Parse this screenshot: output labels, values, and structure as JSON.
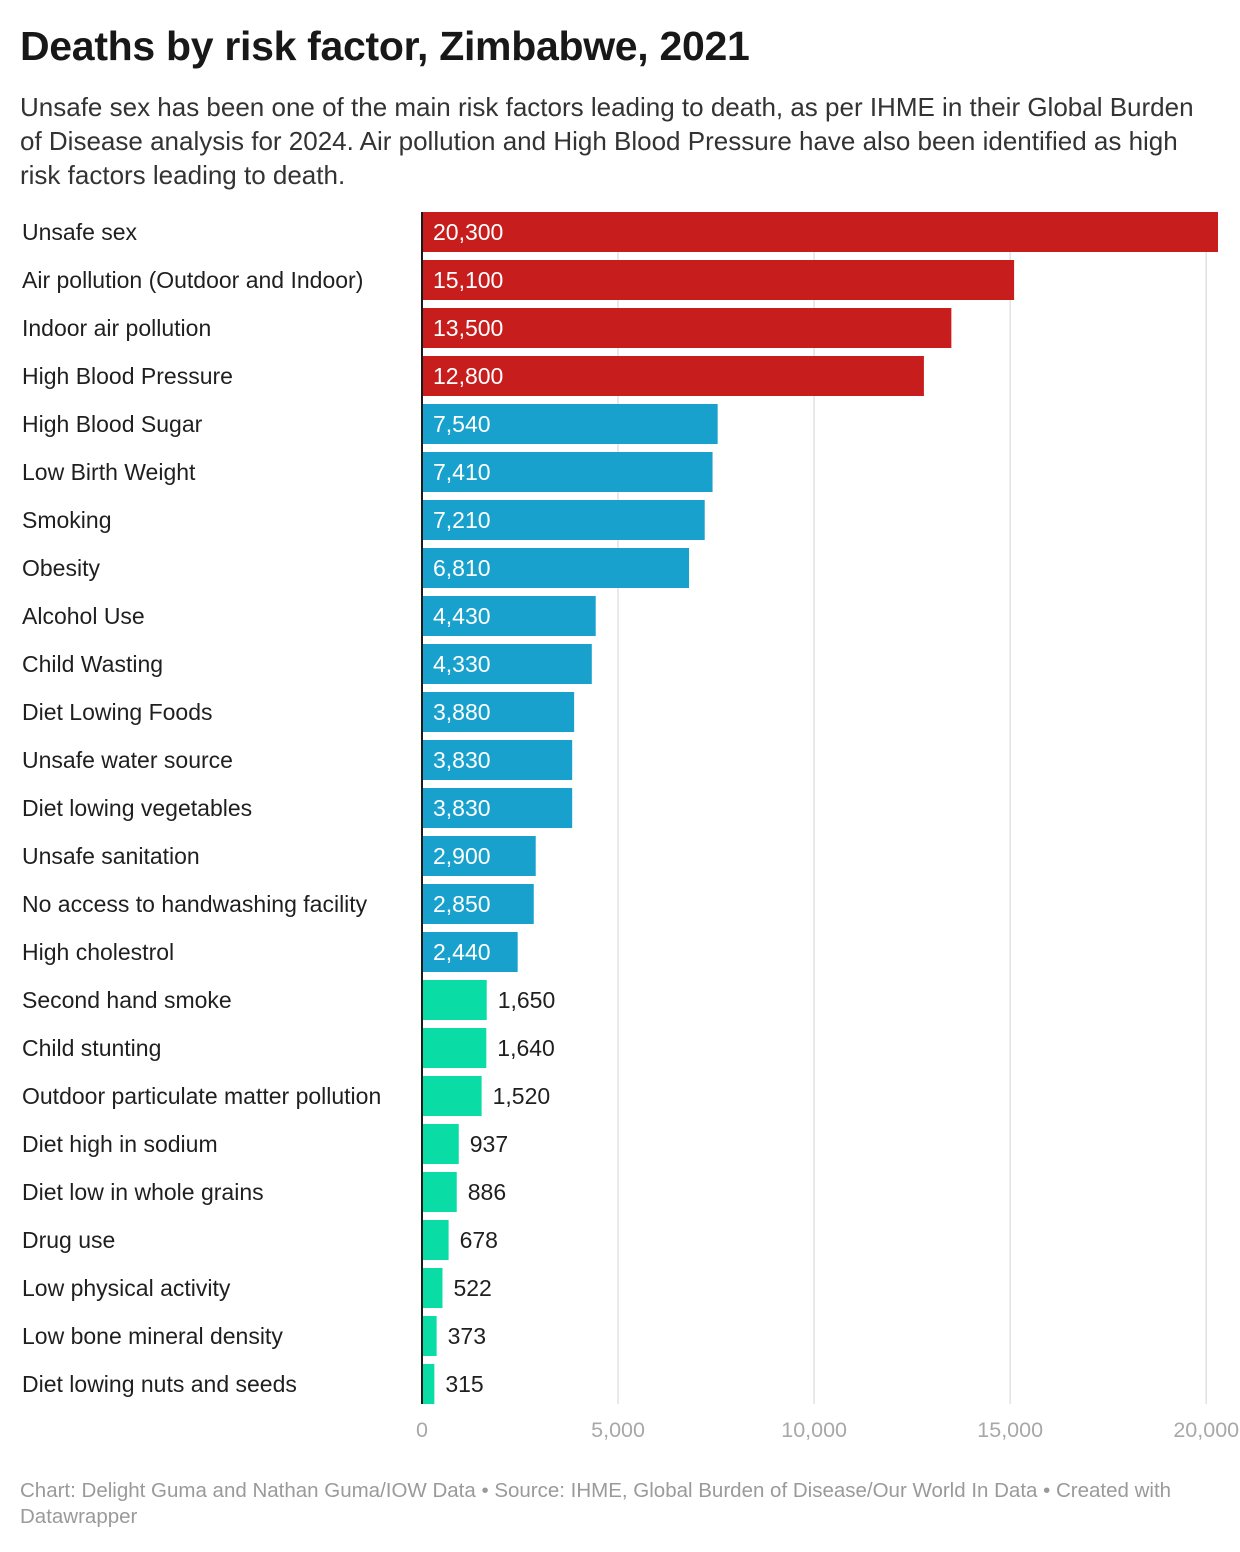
{
  "header": {
    "title": "Deaths by risk factor, Zimbabwe, 2021",
    "subtitle": "Unsafe sex has been one of the main risk factors leading to death, as per IHME in their Global Burden of Disease analysis for 2024. Air pollution and High Blood Pressure have also been identified as high risk factors leading to death."
  },
  "footer": {
    "credit": "Chart: Delight Guma and Nathan Guma/IOW Data • Source: IHME, Global Burden of Disease/Our World In Data • Created with Datawrapper"
  },
  "colors": {
    "high": "#c71e1d",
    "medium": "#18a1cd",
    "low": "#09dca4",
    "label_inside": "#ffffff",
    "label_outside": "#1f1f1f",
    "grid": "#e2e2e2",
    "axis": "#1a1a1a"
  },
  "chart_data": {
    "type": "bar",
    "orientation": "horizontal",
    "title": "Deaths by risk factor, Zimbabwe, 2021",
    "xlabel": "",
    "ylabel": "",
    "xlim": [
      0,
      20300
    ],
    "grid": true,
    "ticks": [
      0,
      5000,
      10000,
      15000,
      20000
    ],
    "tick_labels": [
      "0",
      "5,000",
      "10,000",
      "15,000",
      "20,000"
    ],
    "categories": [
      "Unsafe sex",
      "Air pollution (Outdoor and Indoor)",
      "Indoor air pollution",
      "High Blood Pressure",
      "High Blood Sugar",
      "Low Birth Weight",
      "Smoking",
      "Obesity",
      "Alcohol Use",
      "Child Wasting",
      "Diet Lowing Foods",
      "Unsafe water source",
      "Diet lowing vegetables",
      "Unsafe sanitation",
      "No access to handwashing facility",
      "High cholestrol",
      "Second hand smoke",
      "Child stunting",
      "Outdoor particulate matter pollution",
      "Diet high in sodium",
      "Diet low in whole grains",
      "Drug use",
      "Low physical activity",
      "Low bone mineral density",
      "Diet lowing nuts and seeds"
    ],
    "values": [
      20300,
      15100,
      13500,
      12800,
      7540,
      7410,
      7210,
      6810,
      4430,
      4330,
      3880,
      3830,
      3830,
      2900,
      2850,
      2440,
      1650,
      1640,
      1520,
      937,
      886,
      678,
      522,
      373,
      315
    ],
    "value_labels": [
      "20,300",
      "15,100",
      "13,500",
      "12,800",
      "7,540",
      "7,410",
      "7,210",
      "6,810",
      "4,430",
      "4,330",
      "3,880",
      "3,830",
      "3,830",
      "2,900",
      "2,850",
      "2,440",
      "1,650",
      "1,640",
      "1,520",
      "937",
      "886",
      "678",
      "522",
      "373",
      "315"
    ],
    "groups": [
      "high",
      "high",
      "high",
      "high",
      "medium",
      "medium",
      "medium",
      "medium",
      "medium",
      "medium",
      "medium",
      "medium",
      "medium",
      "medium",
      "medium",
      "medium",
      "low",
      "low",
      "low",
      "low",
      "low",
      "low",
      "low",
      "low",
      "low"
    ]
  }
}
